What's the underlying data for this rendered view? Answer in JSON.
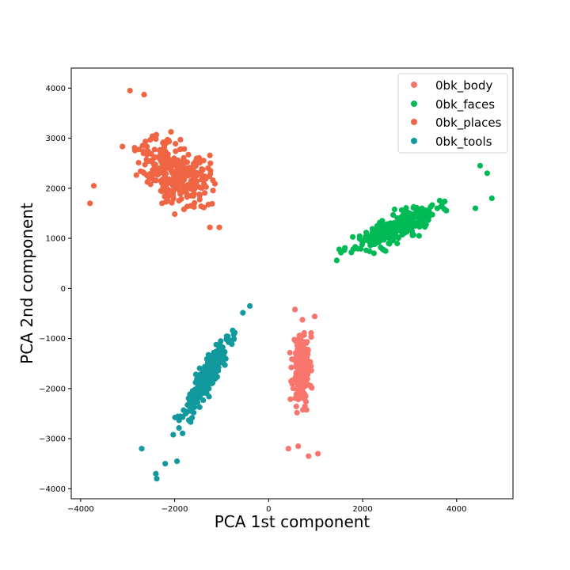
{
  "chart_data": {
    "type": "scatter",
    "xlabel": "PCA 1st component",
    "ylabel": "PCA 2nd component",
    "xlim": [
      -4200,
      5200
    ],
    "ylim": [
      -4200,
      4400
    ],
    "xticks": [
      -4000,
      -2000,
      0,
      2000,
      4000
    ],
    "yticks": [
      4000,
      3000,
      2000,
      1000,
      0,
      -1000,
      -2000,
      -3000,
      -4000
    ],
    "grid": false,
    "legend_position": "top-right",
    "series": [
      {
        "name": "0bk_body",
        "color": "#f8766d",
        "cluster": {
          "cx": 700,
          "cy": -1600,
          "sx": 160,
          "sy": 650,
          "rho": 0.0,
          "n": 230,
          "seed": 11
        },
        "outliers": [
          [
            850,
            -3350
          ],
          [
            1050,
            -3300
          ],
          [
            630,
            -3150
          ],
          [
            420,
            -3200
          ],
          [
            560,
            -420
          ],
          [
            980,
            -560
          ]
        ]
      },
      {
        "name": "0bk_faces",
        "color": "#00ba56",
        "cluster": {
          "cx": 2700,
          "cy": 1200,
          "sx": 780,
          "sy": 380,
          "rho": 0.8,
          "n": 280,
          "seed": 23
        },
        "outliers": [
          [
            4500,
            2450
          ],
          [
            4750,
            1800
          ],
          [
            4650,
            2300
          ],
          [
            1450,
            560
          ],
          [
            1500,
            780
          ],
          [
            4400,
            1600
          ]
        ]
      },
      {
        "name": "0bk_places",
        "color": "#f06543",
        "cluster": {
          "cx": -2000,
          "cy": 2350,
          "sx": 650,
          "sy": 600,
          "rho": -0.35,
          "n": 300,
          "seed": 37
        },
        "outliers": [
          [
            -2950,
            3950
          ],
          [
            -2650,
            3870
          ],
          [
            -1050,
            1220
          ],
          [
            -1250,
            1220
          ],
          [
            -3720,
            2050
          ],
          [
            -3800,
            1700
          ]
        ]
      },
      {
        "name": "0bk_tools",
        "color": "#12999e",
        "cluster": {
          "cx": -1300,
          "cy": -1750,
          "sx": 500,
          "sy": 800,
          "rho": 0.93,
          "n": 280,
          "seed": 53
        },
        "outliers": [
          [
            -2380,
            -3800
          ],
          [
            -2400,
            -3700
          ],
          [
            -2700,
            -3200
          ],
          [
            -400,
            -350
          ],
          [
            -2200,
            -3500
          ],
          [
            -1950,
            -3450
          ]
        ]
      }
    ]
  }
}
